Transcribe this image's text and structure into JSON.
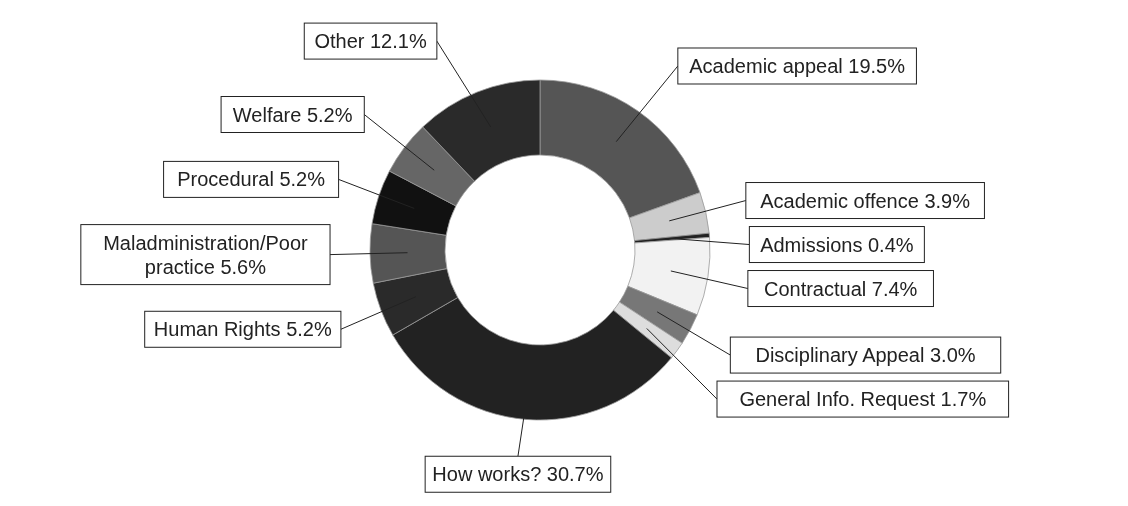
{
  "chart_data": {
    "type": "donut",
    "categories": [
      "Academic appeal",
      "Academic offence",
      "Admissions",
      "Contractual",
      "Disciplinary Appeal",
      "General Info. Request",
      "How works?",
      "Human Rights",
      "Maladministration/Poor practice",
      "Procedural",
      "Welfare",
      "Other"
    ],
    "values": [
      19.5,
      3.9,
      0.4,
      7.4,
      3.0,
      1.7,
      30.7,
      5.2,
      5.6,
      5.2,
      5.2,
      12.1
    ],
    "value_labels": [
      "19.5%",
      "3.9%",
      "0.4%",
      "7.4%",
      "3.0%",
      "1.7%",
      "30.7%",
      "5.2%",
      "5.6%",
      "5.2%",
      "5.2%",
      "12.1%"
    ],
    "colors": [
      "#555555",
      "#cccccc",
      "#222222",
      "#f2f2f2",
      "#777777",
      "#dddddd",
      "#222222",
      "#2a2a2a",
      "#555555",
      "#111111",
      "#666666",
      "#2a2a2a"
    ]
  }
}
